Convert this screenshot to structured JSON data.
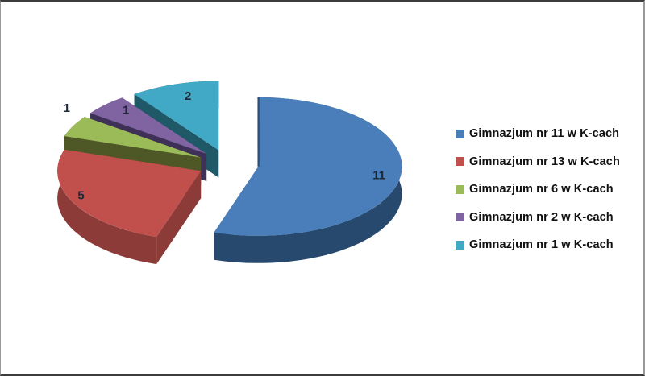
{
  "chart_data": {
    "type": "pie",
    "variant": "3d-exploded",
    "title": "",
    "legend_position": "right",
    "background_color": "#ffffff",
    "data_label_color": "#1c2836",
    "categories": [
      "Gimnazjum nr 11 w K-cach",
      "Gimnazjum nr 13 w K-cach",
      "Gimnazjum nr 6 w K-cach",
      "Gimnazjum nr 2 w K-cach",
      "Gimnazjum nr 1 w K-cach"
    ],
    "values": [
      11,
      5,
      1,
      1,
      2
    ],
    "slices": [
      {
        "label": "Gimnazjum nr 11 w K-cach",
        "value": 11,
        "color": "#4a7ebb",
        "side_color": "#27496d"
      },
      {
        "label": "Gimnazjum nr 13 w K-cach",
        "value": 5,
        "color": "#c1504d",
        "side_color": "#8d3b38"
      },
      {
        "label": "Gimnazjum nr 6 w K-cach",
        "value": 1,
        "color": "#9bbb59",
        "side_color": "#4d5826"
      },
      {
        "label": "Gimnazjum nr 2 w K-cach",
        "value": 1,
        "color": "#8064a2",
        "side_color": "#3e3057"
      },
      {
        "label": "Gimnazjum nr 1 w K-cach",
        "value": 2,
        "color": "#41a8c5",
        "side_color": "#1f5967"
      }
    ]
  }
}
